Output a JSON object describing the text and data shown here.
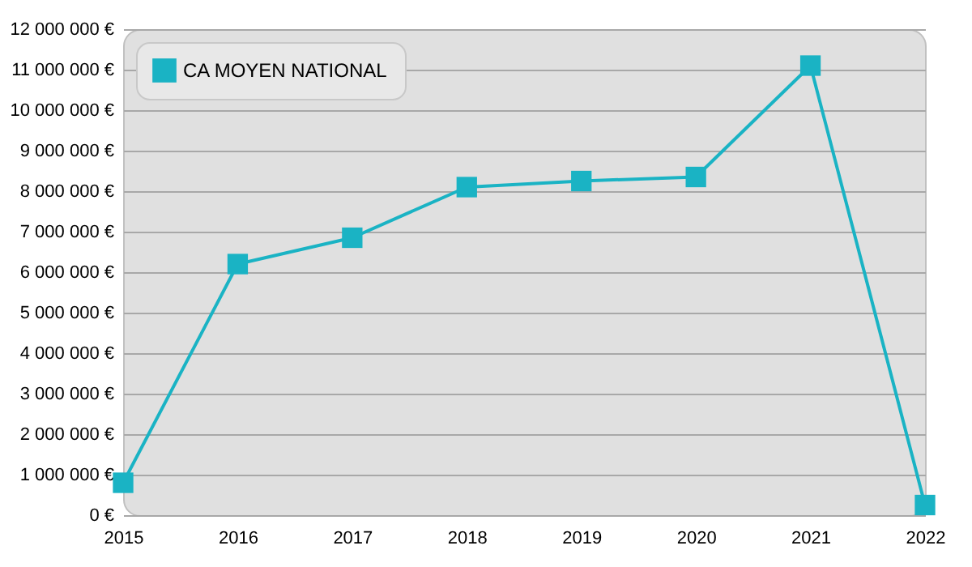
{
  "chart_data": {
    "type": "line",
    "categories": [
      "2015",
      "2016",
      "2017",
      "2018",
      "2019",
      "2020",
      "2021",
      "2022"
    ],
    "series": [
      {
        "name": "CA MOYEN NATIONAL",
        "color": "#1ab3c4",
        "values": [
          800000,
          6200000,
          6850000,
          8100000,
          8250000,
          8350000,
          11100000,
          250000
        ]
      }
    ],
    "ylim": [
      0,
      12000000
    ],
    "yticks": [
      {
        "value": 0,
        "label": "0 €"
      },
      {
        "value": 1000000,
        "label": "1 000 000 €"
      },
      {
        "value": 2000000,
        "label": "2 000 000 €"
      },
      {
        "value": 3000000,
        "label": "3 000 000 €"
      },
      {
        "value": 4000000,
        "label": "4 000 000 €"
      },
      {
        "value": 5000000,
        "label": "5 000 000 €"
      },
      {
        "value": 6000000,
        "label": "6 000 000 €"
      },
      {
        "value": 7000000,
        "label": "7 000 000 €"
      },
      {
        "value": 8000000,
        "label": "8 000 000 €"
      },
      {
        "value": 9000000,
        "label": "9 000 000 €"
      },
      {
        "value": 10000000,
        "label": "10 000 000 €"
      },
      {
        "value": 11000000,
        "label": "11 000 000 €"
      },
      {
        "value": 12000000,
        "label": "12 000 000 €"
      }
    ],
    "grid": "y",
    "legend": "top left",
    "marker": "square",
    "line_style": "solid"
  }
}
